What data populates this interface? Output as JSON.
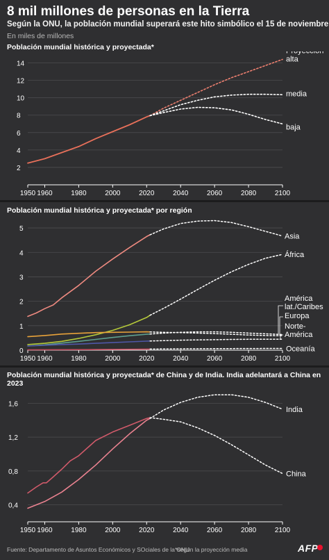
{
  "header": {
    "title": "8 mil millones de personas en la Tierra",
    "subtitle": "Según la ONU, la población mundial superará este hito simbólico el 15 de noviembre",
    "unit": "En miles de millones"
  },
  "footer": {
    "source": "Fuente: Departamento de Asuntos Económicos y SOciales de la ONU",
    "note": "*según la proyección media",
    "brand": "AFP"
  },
  "colors": {
    "background": "#2f2f31",
    "world": "#e8705a",
    "projection": "#ffffff",
    "projection_high": "#ef8070",
    "asia": "#ee8a80",
    "africa": "#b5c93a",
    "latam": "#5fa08f",
    "europe": "#e8a23a",
    "north_america": "#4f57a8",
    "oceania": "#c04a5c",
    "china": "#d05a6a",
    "india": "#ea8290",
    "brand_red": "#e8112d"
  },
  "chart_data": [
    {
      "type": "line",
      "title": "Población mundial histórica y proyectada*",
      "xlim": [
        1950,
        2100
      ],
      "ylim": [
        0,
        15
      ],
      "x_ticks": [
        1950,
        1960,
        1980,
        2000,
        2020,
        2040,
        2060,
        2080,
        2100
      ],
      "x_tick_labels": [
        "1950",
        "1960",
        "1980",
        "2000",
        "2020",
        "2040",
        "2060",
        "2080",
        "2100"
      ],
      "y_ticks": [
        2,
        4,
        6,
        8,
        10,
        12,
        14
      ],
      "y_tick_labels": [
        "2",
        "4",
        "6",
        "8",
        "10",
        "12",
        "14"
      ],
      "grid": true,
      "series": [
        {
          "key": "historical",
          "color": "#e8705a",
          "dashed": false,
          "x": [
            1950,
            1960,
            1970,
            1980,
            1990,
            2000,
            2010,
            2020,
            2022
          ],
          "values": [
            2.5,
            3.0,
            3.7,
            4.4,
            5.3,
            6.1,
            6.9,
            7.8,
            7.95
          ]
        },
        {
          "key": "alta",
          "name": "Proyección\nalta",
          "color": "#ef8070",
          "dashed": true,
          "x": [
            2022,
            2030,
            2040,
            2050,
            2060,
            2070,
            2080,
            2090,
            2100
          ],
          "values": [
            7.95,
            8.8,
            9.7,
            10.6,
            11.5,
            12.3,
            13.0,
            13.7,
            14.4
          ]
        },
        {
          "key": "media",
          "name": "media",
          "color": "#ffffff",
          "dashed": true,
          "x": [
            2022,
            2030,
            2040,
            2050,
            2060,
            2070,
            2080,
            2090,
            2100
          ],
          "values": [
            7.95,
            8.5,
            9.2,
            9.7,
            10.1,
            10.3,
            10.4,
            10.4,
            10.35
          ]
        },
        {
          "key": "baja",
          "name": "baja",
          "color": "#ffffff",
          "dashed": true,
          "x": [
            2022,
            2030,
            2040,
            2050,
            2060,
            2070,
            2080,
            2090,
            2100
          ],
          "values": [
            7.95,
            8.3,
            8.7,
            8.9,
            8.85,
            8.6,
            8.1,
            7.5,
            7.0
          ]
        }
      ]
    },
    {
      "type": "line",
      "title": "Población mundial histórica y proyectada* por región",
      "xlim": [
        1950,
        2100
      ],
      "ylim": [
        0,
        5.4
      ],
      "x_ticks": [
        1950,
        1960,
        1980,
        2000,
        2020,
        2040,
        2060,
        2080,
        2100
      ],
      "x_tick_labels": [
        "1950",
        "1960",
        "1980",
        "2000",
        "2020",
        "2040",
        "2060",
        "2080",
        "2100"
      ],
      "y_ticks": [
        0,
        1,
        2,
        3,
        4,
        5
      ],
      "y_tick_labels": [
        "0",
        "1",
        "2",
        "3",
        "4",
        "5"
      ],
      "grid": true,
      "series": [
        {
          "key": "asia",
          "name": "Asia",
          "color": "#ee8a80",
          "hist_x": [
            1950,
            1955,
            1960,
            1965,
            1970,
            1980,
            1990,
            2000,
            2010,
            2020,
            2022
          ],
          "hist_values": [
            1.38,
            1.52,
            1.7,
            1.85,
            2.14,
            2.65,
            3.23,
            3.73,
            4.2,
            4.65,
            4.72
          ],
          "proj_x": [
            2022,
            2030,
            2040,
            2050,
            2060,
            2070,
            2080,
            2090,
            2100
          ],
          "proj_values": [
            4.72,
            4.96,
            5.18,
            5.28,
            5.3,
            5.22,
            5.05,
            4.86,
            4.67
          ]
        },
        {
          "key": "africa",
          "name": "África",
          "color": "#b5c93a",
          "hist_x": [
            1950,
            1960,
            1970,
            1980,
            1990,
            2000,
            2010,
            2020,
            2022
          ],
          "hist_values": [
            0.23,
            0.28,
            0.36,
            0.48,
            0.63,
            0.81,
            1.04,
            1.34,
            1.43
          ],
          "proj_x": [
            2022,
            2030,
            2040,
            2050,
            2060,
            2070,
            2080,
            2090,
            2100
          ],
          "proj_values": [
            1.43,
            1.71,
            2.09,
            2.48,
            2.86,
            3.21,
            3.51,
            3.76,
            3.92
          ]
        },
        {
          "key": "latam",
          "name": "América\nlat./Caribes",
          "color": "#5fa08f",
          "hist_x": [
            1950,
            1960,
            1970,
            1980,
            1990,
            2000,
            2010,
            2020,
            2022
          ],
          "hist_values": [
            0.17,
            0.22,
            0.29,
            0.36,
            0.44,
            0.52,
            0.59,
            0.65,
            0.66
          ],
          "proj_x": [
            2022,
            2030,
            2040,
            2050,
            2060,
            2070,
            2080,
            2090,
            2100
          ],
          "proj_values": [
            0.66,
            0.7,
            0.73,
            0.75,
            0.75,
            0.73,
            0.7,
            0.67,
            0.64
          ]
        },
        {
          "key": "europe",
          "name": "Europa",
          "color": "#e8a23a",
          "hist_x": [
            1950,
            1960,
            1970,
            1980,
            1990,
            2000,
            2010,
            2020,
            2022
          ],
          "hist_values": [
            0.55,
            0.6,
            0.66,
            0.69,
            0.72,
            0.73,
            0.74,
            0.75,
            0.745
          ],
          "proj_x": [
            2022,
            2030,
            2040,
            2050,
            2060,
            2070,
            2080,
            2090,
            2100
          ],
          "proj_values": [
            0.745,
            0.73,
            0.72,
            0.7,
            0.68,
            0.65,
            0.62,
            0.6,
            0.59
          ]
        },
        {
          "key": "north_america",
          "name": "Norte-\nAmérica",
          "color": "#4f57a8",
          "hist_x": [
            1950,
            1960,
            1970,
            1980,
            1990,
            2000,
            2010,
            2020,
            2022
          ],
          "hist_values": [
            0.17,
            0.2,
            0.23,
            0.25,
            0.28,
            0.31,
            0.34,
            0.37,
            0.375
          ],
          "proj_x": [
            2022,
            2030,
            2040,
            2050,
            2060,
            2070,
            2080,
            2090,
            2100
          ],
          "proj_values": [
            0.375,
            0.39,
            0.41,
            0.42,
            0.43,
            0.44,
            0.445,
            0.445,
            0.45
          ]
        },
        {
          "key": "oceania",
          "name": "Oceanía",
          "color": "#c04a5c",
          "hist_x": [
            1950,
            1970,
            1990,
            2010,
            2022
          ],
          "hist_values": [
            0.013,
            0.02,
            0.027,
            0.037,
            0.045
          ],
          "proj_x": [
            2022,
            2040,
            2060,
            2080,
            2100
          ],
          "proj_values": [
            0.045,
            0.055,
            0.063,
            0.068,
            0.072
          ]
        }
      ]
    },
    {
      "type": "line",
      "title": "Población mundial histórica y proyectada* de China y de India. India adelantará a China en 2023",
      "xlim": [
        1950,
        2100
      ],
      "ylim": [
        0.2,
        1.8
      ],
      "x_ticks": [
        1950,
        1960,
        1980,
        2000,
        2020,
        2040,
        2060,
        2080,
        2100
      ],
      "x_tick_labels": [
        "1950",
        "1960",
        "1980",
        "2000",
        "2020",
        "2040",
        "2060",
        "2080",
        "2100"
      ],
      "y_ticks": [
        0.4,
        0.8,
        1.2,
        1.6
      ],
      "y_tick_labels": [
        "0,4",
        "0,8",
        "1,2",
        "1,6"
      ],
      "grid": true,
      "series": [
        {
          "key": "india",
          "name": "India",
          "color": "#ea8290",
          "hist_x": [
            1950,
            1960,
            1970,
            1980,
            1990,
            2000,
            2010,
            2020,
            2022
          ],
          "hist_values": [
            0.36,
            0.44,
            0.55,
            0.7,
            0.87,
            1.06,
            1.24,
            1.4,
            1.42
          ],
          "proj_x": [
            2022,
            2030,
            2040,
            2050,
            2060,
            2070,
            2080,
            2090,
            2100
          ],
          "proj_values": [
            1.42,
            1.52,
            1.61,
            1.67,
            1.7,
            1.7,
            1.67,
            1.61,
            1.53
          ]
        },
        {
          "key": "china",
          "name": "China",
          "color": "#d05a6a",
          "hist_x": [
            1950,
            1955,
            1959,
            1961,
            1965,
            1970,
            1975,
            1980,
            1990,
            2000,
            2010,
            2020,
            2022
          ],
          "hist_values": [
            0.54,
            0.61,
            0.66,
            0.66,
            0.73,
            0.82,
            0.92,
            0.98,
            1.16,
            1.26,
            1.34,
            1.42,
            1.43
          ],
          "proj_x": [
            2022,
            2030,
            2040,
            2050,
            2060,
            2070,
            2080,
            2090,
            2100
          ],
          "proj_values": [
            1.43,
            1.41,
            1.38,
            1.31,
            1.22,
            1.11,
            0.99,
            0.87,
            0.77
          ]
        }
      ]
    }
  ]
}
